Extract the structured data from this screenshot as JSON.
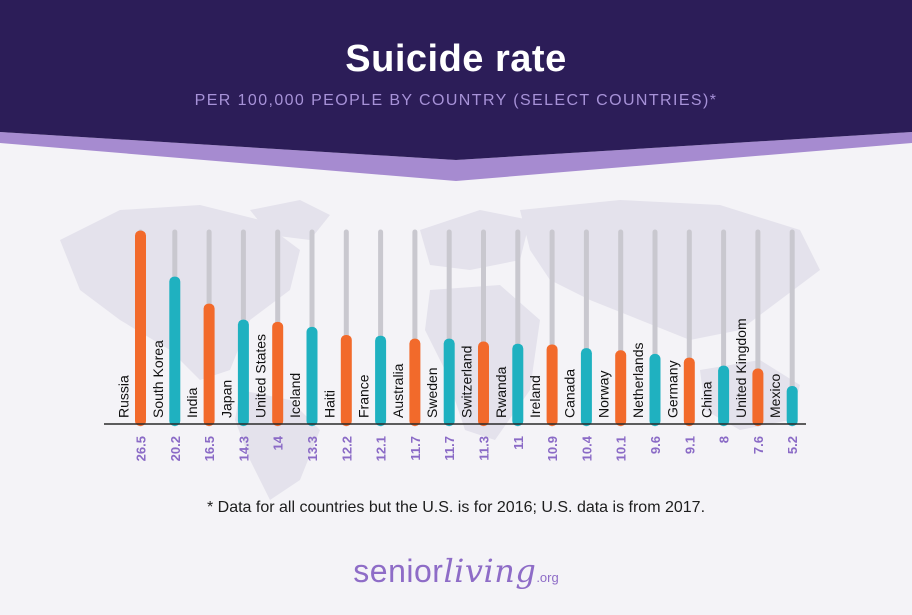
{
  "header": {
    "title": "Suicide rate",
    "subtitle": "PER 100,000 PEOPLE BY COUNTRY (SELECT COUNTRIES)*"
  },
  "colors": {
    "header_bg": "#2c1d58",
    "header_band": "#a68bd0",
    "orange": "#f26a2b",
    "teal": "#1fb1c0",
    "value_label": "#8a6ac6",
    "track": "#c9c8cf",
    "axis": "#2a2a2a"
  },
  "chart_data": {
    "type": "bar",
    "categories": [
      "Russia",
      "South Korea",
      "India",
      "Japan",
      "United States",
      "Iceland",
      "Haiti",
      "France",
      "Australia",
      "Sweden",
      "Switzerland",
      "Rwanda",
      "Ireland",
      "Canada",
      "Norway",
      "Netherlands",
      "Germany",
      "China",
      "United Kingdom",
      "Mexico"
    ],
    "values": [
      26.5,
      20.2,
      16.5,
      14.3,
      14,
      13.3,
      12.2,
      12.1,
      11.7,
      11.7,
      11.3,
      11,
      10.9,
      10.4,
      10.1,
      9.6,
      9.1,
      8,
      7.6,
      5.2
    ],
    "value_labels": [
      "26.5",
      "20.2",
      "16.5",
      "14.3",
      "14",
      "13.3",
      "12.2",
      "12.1",
      "11.7",
      "11.7",
      "11.3",
      "11",
      "10.9",
      "10.4",
      "10.1",
      "9.6",
      "9.1",
      "8",
      "7.6",
      "5.2"
    ],
    "bar_colors": [
      "orange",
      "teal",
      "orange",
      "teal",
      "orange",
      "teal",
      "orange",
      "teal",
      "orange",
      "teal",
      "orange",
      "teal",
      "orange",
      "teal",
      "orange",
      "teal",
      "orange",
      "teal",
      "orange",
      "teal"
    ],
    "ylim": [
      0,
      28.5
    ],
    "grid": false,
    "title": "Suicide rate",
    "subtitle": "PER 100,000 PEOPLE BY COUNTRY (SELECT COUNTRIES)*",
    "xlabel": "",
    "ylabel": ""
  },
  "footnote": "* Data for all countries but the U.S. is for 2016; U.S. data is from 2017.",
  "brand": {
    "part1": "senior",
    "part2": "living",
    "part3": ".org"
  }
}
